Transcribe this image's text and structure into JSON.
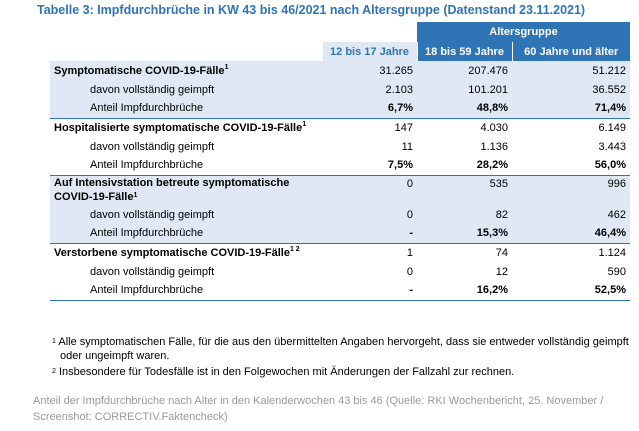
{
  "title": "Tabelle 3: Impfdurchbrüche in KW 43 bis 46/2021 nach Altersgruppe (Datenstand 23.11.2021)",
  "header": {
    "group_label": "Altersgruppe",
    "columns": [
      "12 bis 17 Jahre",
      "18 bis 59 Jahre",
      "60 Jahre und älter"
    ]
  },
  "sections": [
    {
      "label": "Symptomatische COVID-19-Fälle",
      "sup": "1",
      "values": [
        "31.265",
        "207.476",
        "51.212"
      ],
      "vaccinated_label": "davon vollständig geimpft",
      "vaccinated": [
        "2.103",
        "101.201",
        "36.552"
      ],
      "share_label": "Anteil Impfdurchbrüche",
      "share": [
        "6,7%",
        "48,8%",
        "71,4%"
      ]
    },
    {
      "label": "Hospitalisierte symptomatische COVID-19-Fälle",
      "sup": "1",
      "values": [
        "147",
        "4.030",
        "6.149"
      ],
      "vaccinated_label": "davon vollständig geimpft",
      "vaccinated": [
        "11",
        "1.136",
        "3.443"
      ],
      "share_label": "Anteil Impfdurchbrüche",
      "share": [
        "7,5%",
        "28,2%",
        "56,0%"
      ]
    },
    {
      "label": "Auf Intensivstation betreute symptomatische COVID-19-Fälle",
      "sup": "1",
      "values": [
        "0",
        "535",
        "996"
      ],
      "vaccinated_label": "davon vollständig geimpft",
      "vaccinated": [
        "0",
        "82",
        "462"
      ],
      "share_label": "Anteil Impfdurchbrüche",
      "share": [
        "-",
        "15,3%",
        "46,4%"
      ]
    },
    {
      "label": "Verstorbene symptomatische COVID-19-Fälle",
      "sup": "1 2",
      "values": [
        "1",
        "74",
        "1.124"
      ],
      "vaccinated_label": "davon vollständig geimpft",
      "vaccinated": [
        "0",
        "12",
        "590"
      ],
      "share_label": "Anteil Impfdurchbrüche",
      "share": [
        "-",
        "16,2%",
        "52,5%"
      ]
    }
  ],
  "footnotes": [
    {
      "mark": "1",
      "text": "Alle symptomatischen Fälle, für die aus den übermittelten Angaben hervorgeht, dass sie entweder vollständig geimpft oder ungeimpft waren."
    },
    {
      "mark": "2",
      "text": "Insbesondere für Todesfälle ist in den Folgewochen mit Änderungen der Fallzahl zur rechnen."
    }
  ],
  "caption": "Anteil der Impfdurchbrüche nach Alter in den Kalenderwochen 43 bis 46 (Quelle: RKI Wochenbericht, 25. November / Screenshot: CORRECTIV.Faktencheck)",
  "colors": {
    "header_blue": "#2f74b5",
    "row_shade": "#dfe8f4",
    "caption_gray": "#9a9a9a"
  }
}
